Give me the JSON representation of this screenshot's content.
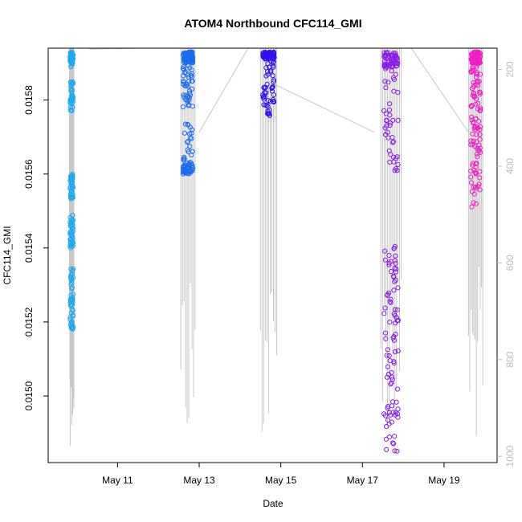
{
  "chart_data": {
    "type": "scatter",
    "title": "ATOM4 Northbound CFC114_GMI",
    "xlabel": "Date",
    "ylabel": "CFC114_GMI",
    "x_ticks": [
      "May 11",
      "May 13",
      "May 15",
      "May 17",
      "May 19"
    ],
    "x_tick_days": [
      11,
      13,
      15,
      17,
      19
    ],
    "xlim_days": [
      9.3,
      20.3
    ],
    "ylim": [
      0.01482,
      0.01594
    ],
    "y_ticks": [
      "0.0150",
      "0.0152",
      "0.0154",
      "0.0156",
      "0.0158"
    ],
    "y_tick_values": [
      0.015,
      0.0152,
      0.0154,
      0.0156,
      0.0158
    ],
    "right_axis": {
      "ticks": [
        "200",
        "400",
        "600",
        "800",
        "1000"
      ],
      "tick_values": [
        200,
        400,
        600,
        800,
        1000
      ],
      "lim": [
        1013,
        156
      ],
      "color": "#bdbdbd"
    },
    "series": [
      {
        "color": "#1fa8f0",
        "x_range": [
          9.82,
          9.93
        ],
        "clusters": [
          [
            0.01593,
            0.01589,
            0.22
          ],
          [
            0.01585,
            0.01577,
            0.14
          ],
          [
            0.0156,
            0.01553,
            0.16
          ],
          [
            0.01549,
            0.0154,
            0.18
          ],
          [
            0.01535,
            0.01518,
            0.3
          ]
        ]
      },
      {
        "color": "#1a6cf0",
        "x_range": [
          12.55,
          12.9
        ],
        "clusters": [
          [
            0.01593,
            0.0159,
            0.55
          ],
          [
            0.0159,
            0.01578,
            0.18
          ],
          [
            0.01575,
            0.0156,
            0.1
          ],
          [
            0.01563,
            0.0156,
            0.1
          ]
        ]
      },
      {
        "color": "#3311ee",
        "x_range": [
          14.5,
          14.9
        ],
        "clusters": [
          [
            0.01593,
            0.01591,
            0.5
          ],
          [
            0.01591,
            0.01575,
            0.25
          ]
        ]
      },
      {
        "color": "#8a1ee8",
        "x_range": [
          17.45,
          17.95
        ],
        "clusters": [
          [
            0.01593,
            0.01589,
            0.3
          ],
          [
            0.0159,
            0.0156,
            0.2
          ],
          [
            0.01543,
            0.01515,
            0.22
          ],
          [
            0.01515,
            0.01485,
            0.2
          ]
        ]
      },
      {
        "color": "#f01ec8",
        "x_range": [
          19.6,
          19.95
        ],
        "clusters": [
          [
            0.01593,
            0.0159,
            0.4
          ],
          [
            0.0159,
            0.01572,
            0.3
          ],
          [
            0.01572,
            0.0155,
            0.2
          ]
        ]
      }
    ],
    "grid": false
  }
}
